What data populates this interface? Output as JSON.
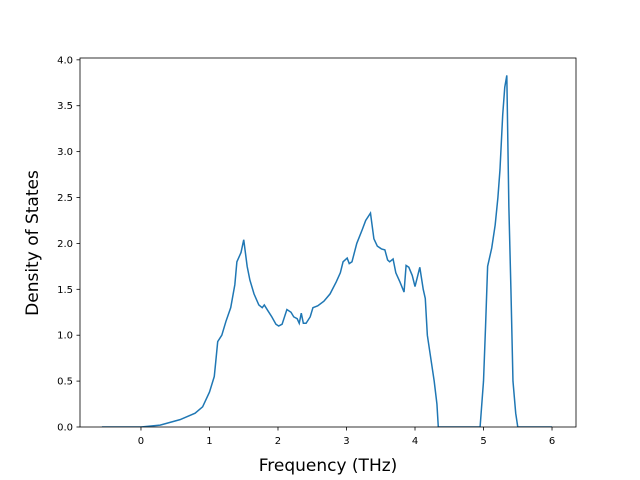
{
  "chart_data": {
    "type": "line",
    "x_label": "Frequency (THz)",
    "y_label": "Density of States",
    "xlim": [
      -0.89,
      6.35
    ],
    "ylim": [
      0,
      4.02
    ],
    "xticks": [
      0,
      1,
      2,
      3,
      4,
      5,
      6
    ],
    "yticks": [
      {
        "value": 0,
        "label": "0.0"
      },
      {
        "value": 0.5,
        "label": "0.5"
      },
      {
        "value": 1,
        "label": "1.0"
      },
      {
        "value": 1.5,
        "label": "1.5"
      },
      {
        "value": 2,
        "label": "2.0"
      },
      {
        "value": 2.5,
        "label": "2.5"
      },
      {
        "value": 3,
        "label": "3.0"
      },
      {
        "value": 3.5,
        "label": "3.5"
      },
      {
        "value": 4,
        "label": "4.0"
      }
    ],
    "series": [
      {
        "color": "#1f77b4",
        "x": [
          -0.57,
          0,
          0.28,
          0.57,
          0.79,
          0.9,
          1.0,
          1.07,
          1.09,
          1.12,
          1.18,
          1.24,
          1.31,
          1.37,
          1.4,
          1.46,
          1.5,
          1.55,
          1.59,
          1.65,
          1.72,
          1.77,
          1.8,
          1.85,
          1.91,
          1.97,
          2.01,
          2.06,
          2.13,
          2.19,
          2.23,
          2.28,
          2.31,
          2.34,
          2.37,
          2.41,
          2.47,
          2.51,
          2.58,
          2.67,
          2.76,
          2.85,
          2.91,
          2.95,
          3.01,
          3.04,
          3.08,
          3.15,
          3.23,
          3.28,
          3.35,
          3.4,
          3.45,
          3.51,
          3.56,
          3.6,
          3.63,
          3.68,
          3.72,
          3.78,
          3.84,
          3.87,
          3.91,
          3.96,
          4.0,
          4.04,
          4.07,
          4.12,
          4.15,
          4.18,
          4.22,
          4.28,
          4.32,
          4.34,
          4.95,
          5.0,
          5.03,
          5.06,
          5.12,
          5.17,
          5.21,
          5.24,
          5.28,
          5.31,
          5.34,
          5.37,
          5.4,
          5.43,
          5.47,
          5.5,
          6.0
        ],
        "values": [
          0,
          0,
          0.02,
          0.08,
          0.15,
          0.22,
          0.38,
          0.55,
          0.7,
          0.93,
          1.0,
          1.15,
          1.3,
          1.55,
          1.8,
          1.9,
          2.04,
          1.75,
          1.6,
          1.45,
          1.33,
          1.3,
          1.33,
          1.27,
          1.2,
          1.12,
          1.1,
          1.12,
          1.28,
          1.25,
          1.2,
          1.18,
          1.13,
          1.24,
          1.13,
          1.13,
          1.2,
          1.3,
          1.32,
          1.37,
          1.45,
          1.58,
          1.68,
          1.8,
          1.84,
          1.78,
          1.8,
          2.0,
          2.15,
          2.25,
          2.33,
          2.05,
          1.97,
          1.94,
          1.93,
          1.82,
          1.8,
          1.83,
          1.68,
          1.58,
          1.47,
          1.76,
          1.74,
          1.65,
          1.53,
          1.65,
          1.74,
          1.5,
          1.4,
          1.0,
          0.8,
          0.5,
          0.25,
          0,
          0,
          0.5,
          1.1,
          1.75,
          1.95,
          2.2,
          2.5,
          2.8,
          3.4,
          3.7,
          3.83,
          2.4,
          1.5,
          0.5,
          0.15,
          0,
          0
        ]
      }
    ]
  }
}
